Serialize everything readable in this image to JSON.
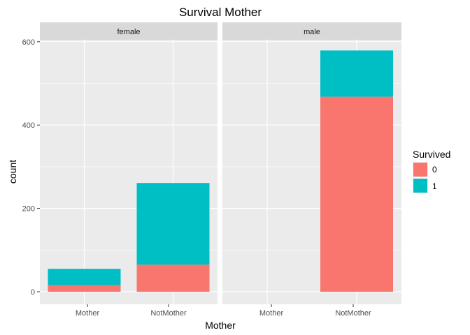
{
  "chart_data": {
    "type": "bar",
    "stacked": true,
    "title": "Survival Mother",
    "xlabel": "Mother",
    "ylabel": "count",
    "ylim": [
      0,
      640
    ],
    "y_ticks": [
      "0",
      "200",
      "400",
      "600"
    ],
    "grid": true,
    "facets": [
      "female",
      "male"
    ],
    "categories": [
      "Mother",
      "NotMother"
    ],
    "legend": {
      "title": "Survived",
      "position": "right"
    },
    "series": [
      {
        "name": "0",
        "color": "#F8766D",
        "values": {
          "female": [
            16,
            65
          ],
          "male": [
            0,
            468
          ]
        }
      },
      {
        "name": "1",
        "color": "#00BFC4",
        "values": {
          "female": [
            39,
            196
          ],
          "male": [
            0,
            111
          ]
        }
      }
    ]
  }
}
